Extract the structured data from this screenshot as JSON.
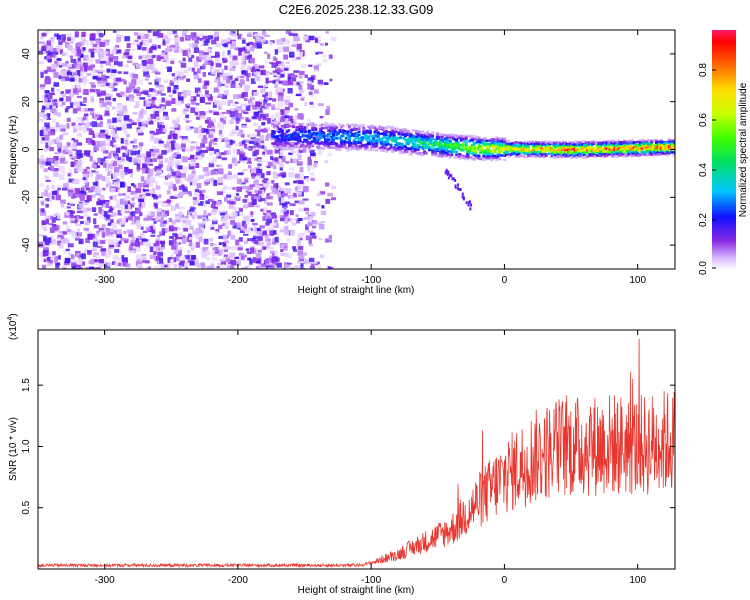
{
  "title": "C2E6.2025.238.12.33.G09",
  "chart_data": [
    {
      "type": "heatmap",
      "name": "spectrogram",
      "xlabel": "Height of straight line (km)",
      "ylabel": "Frequency (Hz)",
      "xlim": [
        -350,
        128
      ],
      "ylim": [
        -50,
        50
      ],
      "xticks": [
        -300,
        -200,
        -100,
        0,
        100
      ],
      "yticks": [
        -40,
        -20,
        0,
        20,
        40
      ],
      "colorbar": {
        "label": "Normalized spectral amplitude",
        "range": [
          0.0,
          0.96
        ],
        "ticks": [
          0.0,
          0.2,
          0.4,
          0.6,
          0.8
        ]
      },
      "description_points": [
        {
          "x": -170,
          "freq": 6,
          "amp": 0.25
        },
        {
          "x": -100,
          "freq": 5,
          "amp": 0.35
        },
        {
          "x": -50,
          "freq": 2,
          "amp": 0.5
        },
        {
          "x": -20,
          "freq": 0.5,
          "amp": 0.7
        },
        {
          "x": 50,
          "freq": 0,
          "amp": 0.9
        },
        {
          "x": 120,
          "freq": 1,
          "amp": 0.9
        }
      ]
    },
    {
      "type": "line",
      "name": "snr",
      "xlabel": "Height of straight line (km)",
      "ylabel": "SNR (10 * v/v)",
      "y_multiplier": "(x10",
      "y_multiplier_exp": "4",
      "y_multiplier_close": ")",
      "xlim": [
        -350,
        128
      ],
      "ylim": [
        0,
        1.95
      ],
      "xticks": [
        -300,
        -200,
        -100,
        0,
        100
      ],
      "yticks": [
        0.5,
        1.0,
        1.5
      ],
      "ytick_labels": [
        "0.5",
        "1.0",
        "1.5"
      ],
      "color": "#e8372f",
      "envelope": [
        {
          "x": -350,
          "mean": 0.03
        },
        {
          "x": -110,
          "mean": 0.03
        },
        {
          "x": -100,
          "mean": 0.05
        },
        {
          "x": -80,
          "mean": 0.12
        },
        {
          "x": -60,
          "mean": 0.22
        },
        {
          "x": -40,
          "mean": 0.32
        },
        {
          "x": -20,
          "mean": 0.55
        },
        {
          "x": 0,
          "mean": 0.75
        },
        {
          "x": 20,
          "mean": 0.9
        },
        {
          "x": 40,
          "mean": 1.0
        },
        {
          "x": 60,
          "mean": 1.0
        },
        {
          "x": 80,
          "mean": 1.02
        },
        {
          "x": 100,
          "mean": 1.0
        },
        {
          "x": 128,
          "mean": 1.05
        }
      ]
    }
  ]
}
